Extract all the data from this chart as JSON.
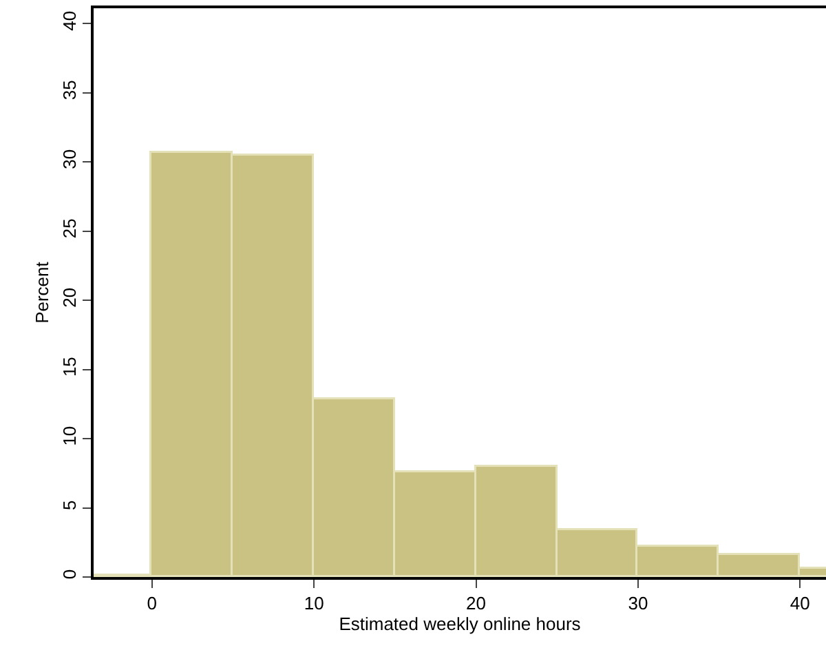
{
  "chart_data": {
    "type": "histogram",
    "xlabel": "Estimated weekly online hours",
    "ylabel": "Percent",
    "bins": [
      -5,
      0,
      5,
      10,
      15,
      20,
      25,
      30,
      35,
      40,
      45
    ],
    "values": [
      0.1,
      30.7,
      30.5,
      12.8,
      7.6,
      8.0,
      3.4,
      2.2,
      1.6,
      0.6
    ],
    "color": "#c9c283",
    "xlim": [
      -3.6,
      41.6
    ],
    "xticks": [
      0,
      10,
      20,
      30,
      40
    ],
    "ylim": [
      0,
      41.1
    ],
    "yticks": [
      0,
      5,
      10,
      15,
      20,
      25,
      30,
      35,
      40
    ]
  }
}
